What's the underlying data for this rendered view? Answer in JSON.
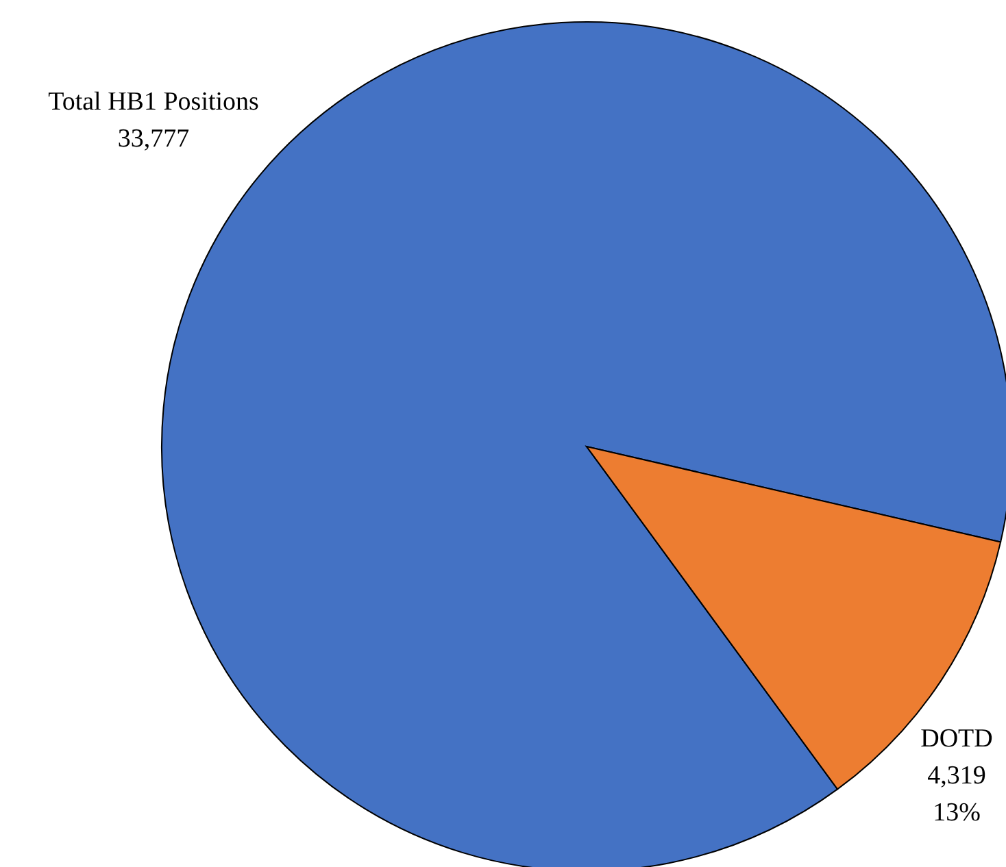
{
  "chart_data": {
    "type": "pie",
    "categories": [
      "Total HB1 Positions",
      "DOTD"
    ],
    "values": [
      33777,
      4319
    ],
    "colors": [
      "#4472c4",
      "#ed7d31"
    ],
    "value_labels": [
      "33,777",
      "4,319\n13%"
    ]
  }
}
